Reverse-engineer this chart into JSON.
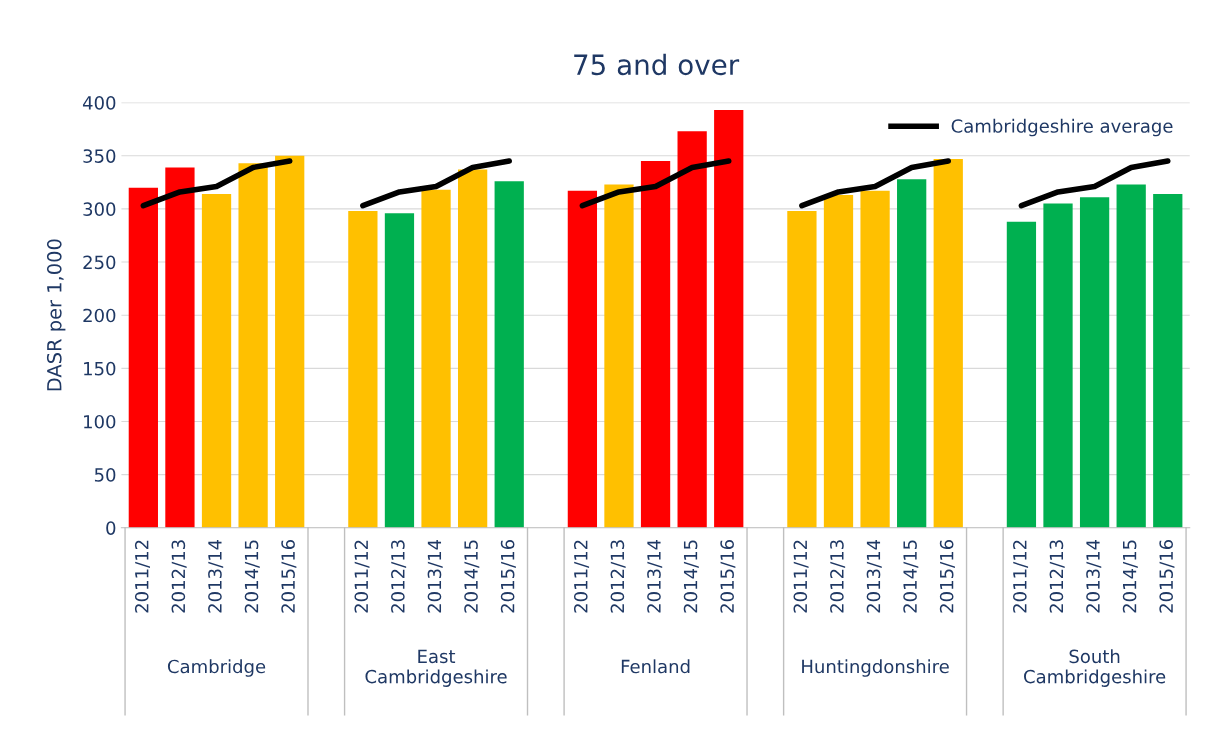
{
  "chart_data": {
    "type": "bar",
    "title": "75 and over",
    "ylabel": "DASR per 1,000",
    "categories": [
      "2011/12",
      "2012/13",
      "2013/14",
      "2014/15",
      "2015/16",
      null,
      "2011/12",
      "2012/13",
      "2013/14",
      "2014/15",
      "2015/16",
      null,
      "2011/12",
      "2012/13",
      "2013/14",
      "2014/15",
      "2015/16",
      null,
      "2011/12",
      "2012/13",
      "2013/14",
      "2014/15",
      "2015/16",
      null,
      "2011/12",
      "2012/13",
      "2013/14",
      "2014/15",
      "2015/16"
    ],
    "series": [
      {
        "values": [
          320,
          339,
          314,
          343,
          350,
          null,
          298,
          296,
          318,
          337,
          326,
          null,
          317,
          323,
          345,
          373,
          393,
          null,
          298,
          313,
          317,
          328,
          347,
          null,
          288,
          305,
          311,
          323,
          314
        ],
        "colors": [
          "#ff0000",
          "#ff0000",
          "#ffc000",
          "#ffc000",
          "#ffc000",
          null,
          "#ffc000",
          "#00b050",
          "#ffc000",
          "#ffc000",
          "#00b050",
          null,
          "#ff0000",
          "#ffc000",
          "#ff0000",
          "#ff0000",
          "#ff0000",
          null,
          "#ffc000",
          "#ffc000",
          "#ffc000",
          "#00b050",
          "#ffc000",
          null,
          "#00b050",
          "#00b050",
          "#00b050",
          "#00b050",
          "#00b050"
        ]
      },
      {
        "type": "line",
        "name": "Cambridgeshire average",
        "color": "#000000",
        "values": [
          303,
          316,
          321,
          339,
          345,
          null,
          303,
          316,
          321,
          339,
          345,
          null,
          303,
          316,
          321,
          339,
          345,
          null,
          303,
          316,
          321,
          339,
          345,
          null,
          303,
          316,
          321,
          339,
          345
        ]
      }
    ],
    "annotations": [
      "Cambridge",
      "East\nCambridgeshire",
      "Fenland",
      "Huntingdonshire",
      "South\nCambridgeshire"
    ],
    "ylim": [
      0,
      400
    ],
    "yticks": [
      0,
      50,
      100,
      150,
      200,
      250,
      300,
      350,
      400
    ],
    "grid": "y",
    "legend": "top right",
    "marker": "none",
    "line_style": "solid"
  }
}
